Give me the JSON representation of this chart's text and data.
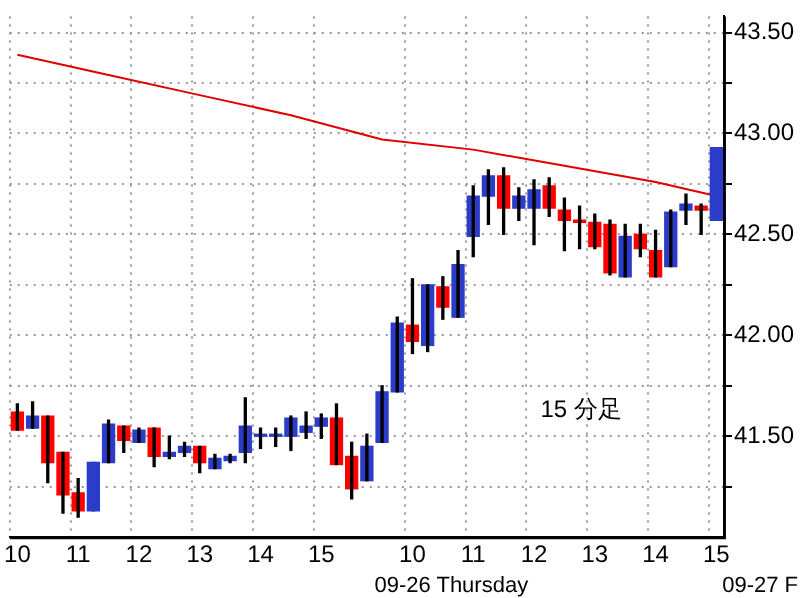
{
  "chart_data": {
    "type": "candlestick",
    "categories": [
      "10",
      null,
      null,
      null,
      "11",
      null,
      null,
      null,
      "12",
      null,
      null,
      null,
      "13",
      null,
      null,
      null,
      "14",
      null,
      null,
      null,
      "15",
      null,
      null,
      null,
      null,
      null,
      "10",
      null,
      null,
      null,
      "11",
      null,
      null,
      null,
      "12",
      null,
      null,
      null,
      "13",
      null,
      null,
      null,
      "14",
      null,
      null,
      null,
      "15"
    ],
    "series": [
      {
        "type": "candlestick",
        "colors": [
          "#ff0000",
          "#2a3cc8",
          "#ff0000",
          "#ff0000",
          "#ff0000",
          "#2a3cc8",
          "#2a3cc8",
          "#ff0000",
          "#2a3cc8",
          "#ff0000",
          "#2a3cc8",
          "#2a3cc8",
          "#ff0000",
          "#2a3cc8",
          "#2a3cc8",
          "#2a3cc8",
          "#2a3cc8",
          "#2a3cc8",
          "#2a3cc8",
          "#2a3cc8",
          "#2a3cc8",
          "#ff0000",
          "#ff0000",
          "#2a3cc8",
          "#2a3cc8",
          "#2a3cc8",
          "#ff0000",
          "#2a3cc8",
          "#ff0000",
          "#2a3cc8",
          "#2a3cc8",
          "#2a3cc8",
          "#ff0000",
          "#2a3cc8",
          "#2a3cc8",
          "#ff0000",
          "#ff0000",
          "#ff0000",
          "#ff0000",
          "#ff0000",
          "#2a3cc8",
          "#ff0000",
          "#ff0000",
          "#2a3cc8",
          "#2a3cc8",
          "#ff0000",
          "#2a3cc8"
        ],
        "ohlc": [
          [
            41.62,
            41.66,
            41.53,
            41.53
          ],
          [
            41.54,
            41.67,
            41.54,
            41.6
          ],
          [
            41.6,
            41.6,
            41.27,
            41.37
          ],
          [
            41.42,
            41.42,
            41.12,
            41.21
          ],
          [
            41.22,
            41.29,
            41.1,
            41.13
          ],
          [
            41.13,
            41.37,
            41.13,
            41.37
          ],
          [
            41.37,
            41.58,
            41.37,
            41.56
          ],
          [
            41.55,
            41.55,
            41.42,
            41.48
          ],
          [
            41.47,
            41.54,
            41.47,
            41.53
          ],
          [
            41.54,
            41.54,
            41.35,
            41.4
          ],
          [
            41.4,
            41.5,
            41.39,
            41.42
          ],
          [
            41.42,
            41.47,
            41.4,
            41.45
          ],
          [
            41.45,
            41.45,
            41.32,
            41.37
          ],
          [
            41.34,
            41.41,
            41.34,
            41.39
          ],
          [
            41.38,
            41.41,
            41.37,
            41.4
          ],
          [
            41.42,
            41.69,
            41.37,
            41.55
          ],
          [
            41.5,
            41.54,
            41.44,
            41.51
          ],
          [
            41.5,
            41.54,
            41.45,
            41.51
          ],
          [
            41.5,
            41.6,
            41.43,
            41.59
          ],
          [
            41.52,
            41.62,
            41.49,
            41.55
          ],
          [
            41.55,
            41.61,
            41.49,
            41.59
          ],
          [
            41.59,
            41.66,
            41.36,
            41.36
          ],
          [
            41.4,
            41.47,
            41.19,
            41.24
          ],
          [
            41.28,
            41.51,
            41.28,
            41.45
          ],
          [
            41.47,
            41.75,
            41.47,
            41.72
          ],
          [
            41.72,
            42.09,
            41.72,
            42.06
          ],
          [
            42.05,
            42.28,
            41.91,
            41.97
          ],
          [
            41.95,
            42.25,
            41.92,
            42.25
          ],
          [
            42.24,
            42.29,
            42.08,
            42.14
          ],
          [
            42.09,
            42.42,
            42.09,
            42.35
          ],
          [
            42.49,
            42.74,
            42.39,
            42.69
          ],
          [
            42.69,
            42.82,
            42.55,
            42.79
          ],
          [
            42.79,
            42.83,
            42.5,
            42.63
          ],
          [
            42.63,
            42.73,
            42.57,
            42.69
          ],
          [
            42.63,
            42.77,
            42.45,
            42.72
          ],
          [
            42.74,
            42.78,
            42.59,
            42.63
          ],
          [
            42.62,
            42.68,
            42.42,
            42.57
          ],
          [
            42.57,
            42.64,
            42.43,
            42.56
          ],
          [
            42.56,
            42.6,
            42.43,
            42.44
          ],
          [
            42.55,
            42.57,
            42.3,
            42.31
          ],
          [
            42.29,
            42.55,
            42.29,
            42.49
          ],
          [
            42.5,
            42.55,
            42.39,
            42.43
          ],
          [
            42.42,
            42.52,
            42.29,
            42.29
          ],
          [
            42.34,
            42.62,
            42.34,
            42.61
          ],
          [
            42.62,
            42.7,
            42.55,
            42.65
          ],
          [
            42.64,
            42.65,
            42.5,
            42.62
          ],
          [
            42.57,
            42.93,
            42.57,
            42.93
          ]
        ]
      },
      {
        "type": "line",
        "color": "#e00000",
        "values": [
          43.39,
          null,
          null,
          null,
          null,
          null,
          43.29,
          null,
          null,
          null,
          null,
          null,
          43.19,
          null,
          null,
          null,
          null,
          null,
          43.09,
          null,
          null,
          null,
          null,
          null,
          42.97,
          null,
          null,
          null,
          null,
          null,
          42.92,
          null,
          null,
          null,
          null,
          null,
          42.84,
          null,
          null,
          null,
          null,
          null,
          42.76,
          null,
          null,
          null,
          42.69
        ]
      }
    ],
    "ylim": [
      41,
      43.58
    ],
    "yticks": [
      {
        "value": 41.25,
        "label": null
      },
      {
        "value": 41.5,
        "label": "41.50"
      },
      {
        "value": 41.75,
        "label": null
      },
      {
        "value": 42,
        "label": "42.00"
      },
      {
        "value": 42.25,
        "label": null
      },
      {
        "value": 42.5,
        "label": "42.50"
      },
      {
        "value": 42.75,
        "label": null
      },
      {
        "value": 43,
        "label": "43.00"
      },
      {
        "value": 43.25,
        "label": null
      },
      {
        "value": 43.5,
        "label": "43.50"
      }
    ],
    "grid": true,
    "legend": false,
    "annotations": [
      "15 分足",
      "09-26 Thursday",
      "09-27 F"
    ]
  }
}
